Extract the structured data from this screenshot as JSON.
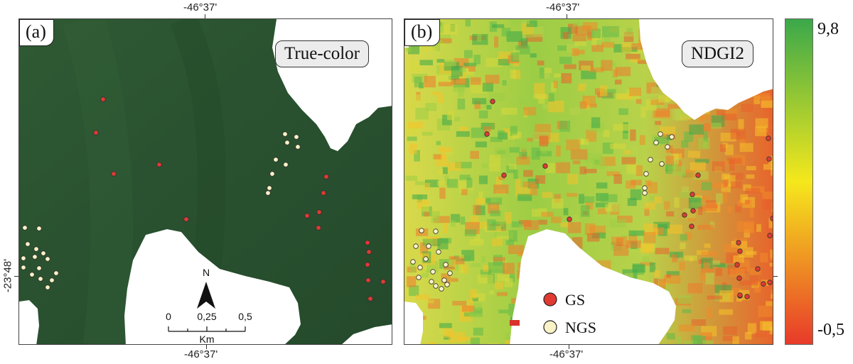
{
  "panels": [
    {
      "letter": "(a)",
      "title": "True-color"
    },
    {
      "letter": "(b)",
      "title": "NDGI2"
    }
  ],
  "coords": {
    "lon_top_a": "-46°37'",
    "lon_top_b": "-46°37'",
    "lon_bottom_a": "-46°37'",
    "lon_bottom_b": "-46°37'",
    "lat_left": "-23°48'"
  },
  "scalebar": {
    "north": "N",
    "ticks": [
      "0",
      "0,25",
      "0,5"
    ],
    "unit": "Km"
  },
  "legend": [
    {
      "label": "GS",
      "color": "#e03a32"
    },
    {
      "label": "NGS",
      "color": "#fbf3c7"
    }
  ],
  "colorbar": {
    "max": "9,8",
    "min": "-0,5",
    "colors": [
      "#3aa84a",
      "#f5e81c",
      "#e83a2a"
    ]
  }
}
